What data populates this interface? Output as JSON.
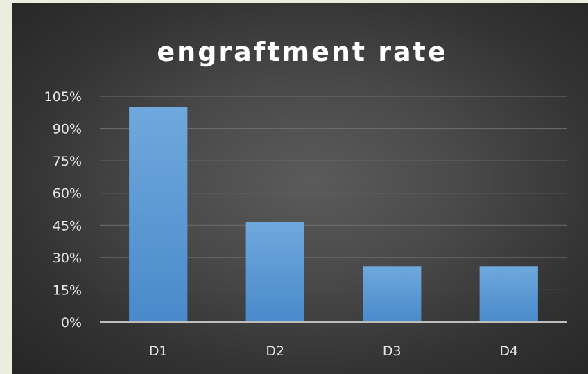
{
  "chart_data": {
    "type": "bar",
    "title": "engraftment rate",
    "xlabel": "",
    "ylabel": "",
    "categories": [
      "D1",
      "D2",
      "D3",
      "D4"
    ],
    "values": [
      100,
      46.7,
      26,
      26
    ],
    "ylim": [
      0,
      105
    ],
    "yticks": [
      0,
      15,
      30,
      45,
      60,
      75,
      90,
      105
    ],
    "ytick_labels": [
      "0%",
      "15%",
      "30%",
      "45%",
      "60%",
      "75%",
      "90%",
      "105%"
    ],
    "grid": true,
    "legend": "none",
    "colors": {
      "bar_top": "#6fa8dc",
      "bar_bottom": "#4a8acb",
      "background": "#3f3f3f",
      "page": "#ececdf"
    }
  }
}
